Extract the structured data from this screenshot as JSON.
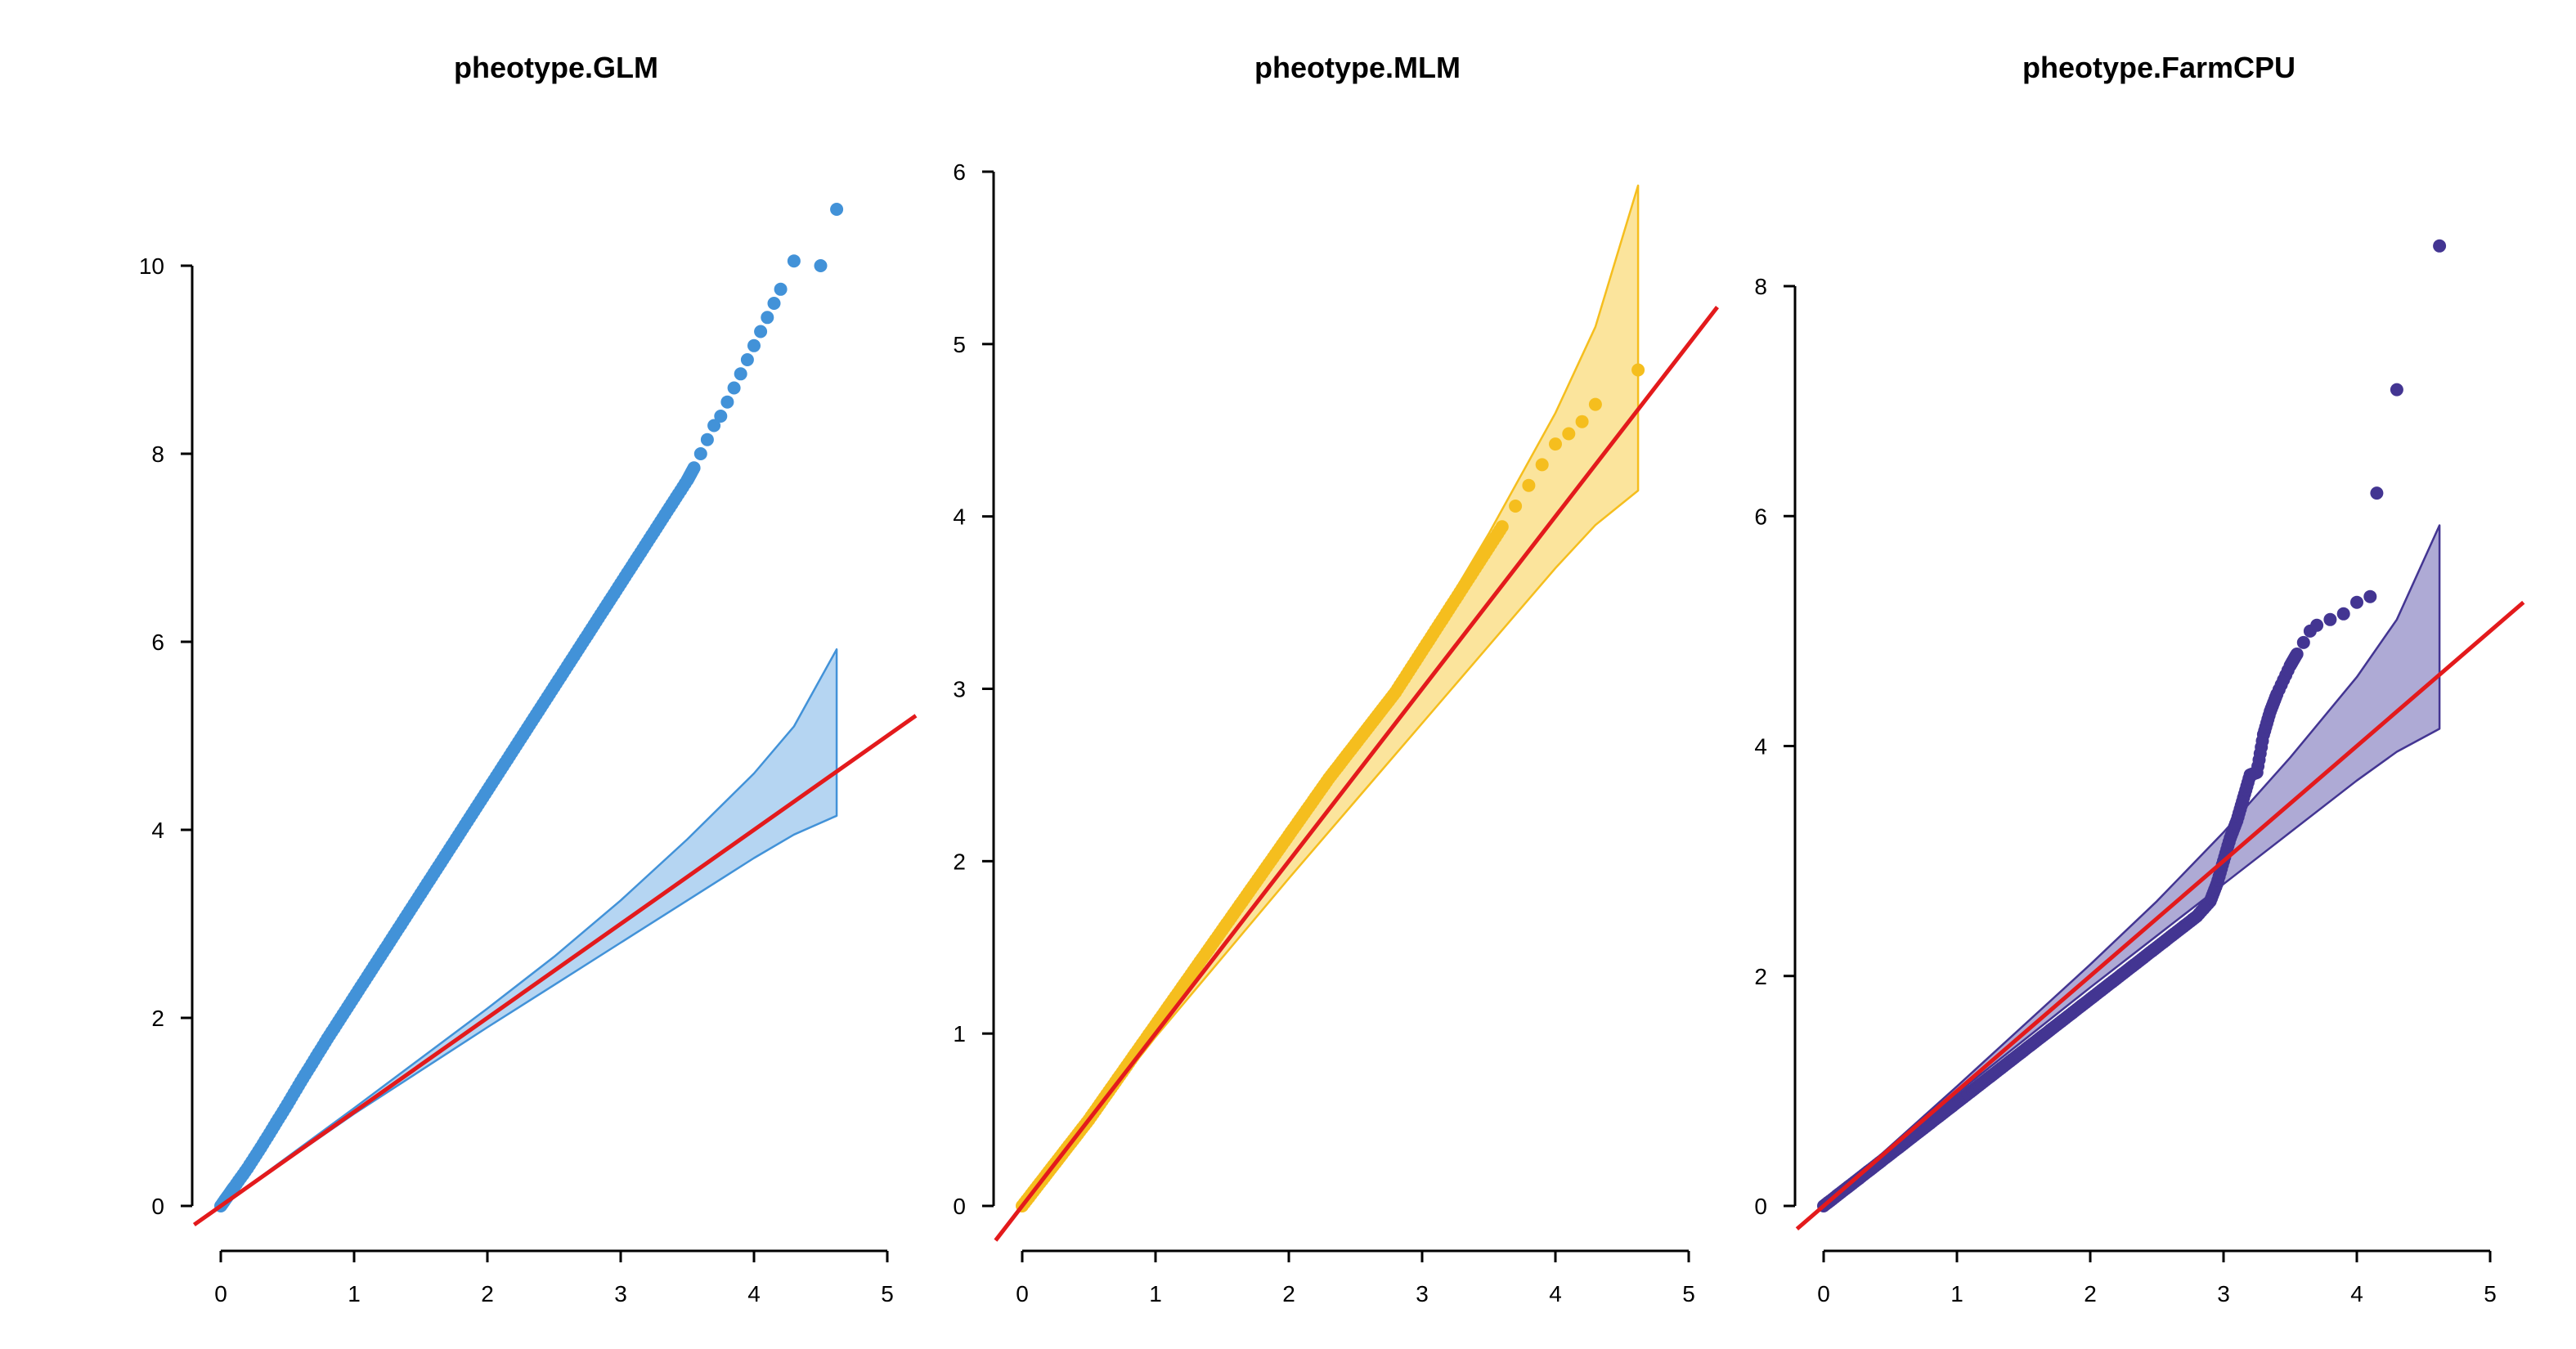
{
  "chart_data": [
    {
      "type": "scatter",
      "title": "pheotype.GLM",
      "xlabel": "",
      "ylabel": "",
      "color": "#4292d8",
      "band_fill": "#b5d5f2",
      "xlim": [
        0,
        5
      ],
      "ylim": [
        0,
        10
      ],
      "x_ticks": [
        "0",
        "1",
        "2",
        "3",
        "4",
        "5"
      ],
      "y_ticks": [
        "0",
        "2",
        "4",
        "6",
        "8",
        "10"
      ],
      "reference_line": "y = x",
      "confidence_band": {
        "x": [
          0,
          1.0,
          2.0,
          2.5,
          3.0,
          3.5,
          4.0,
          4.3,
          4.62
        ],
        "upper": [
          0,
          1.04,
          2.1,
          2.65,
          3.25,
          3.9,
          4.6,
          5.1,
          5.92
        ],
        "lower": [
          0,
          0.98,
          1.9,
          2.35,
          2.8,
          3.25,
          3.7,
          3.95,
          4.15
        ]
      },
      "series": [
        {
          "points": [
            [
              0,
              0
            ],
            [
              0.05,
              0.1
            ],
            [
              0.1,
              0.2
            ],
            [
              0.2,
              0.4
            ],
            [
              0.3,
              0.62
            ],
            [
              0.4,
              0.85
            ],
            [
              0.5,
              1.08
            ],
            [
              0.6,
              1.32
            ],
            [
              0.7,
              1.55
            ],
            [
              0.8,
              1.78
            ],
            [
              0.9,
              2.0
            ],
            [
              1.0,
              2.22
            ],
            [
              1.1,
              2.44
            ],
            [
              1.2,
              2.66
            ],
            [
              1.3,
              2.88
            ],
            [
              1.4,
              3.1
            ],
            [
              1.5,
              3.32
            ],
            [
              1.6,
              3.54
            ],
            [
              1.7,
              3.76
            ],
            [
              1.8,
              3.98
            ],
            [
              1.9,
              4.2
            ],
            [
              2.0,
              4.42
            ],
            [
              2.1,
              4.64
            ],
            [
              2.2,
              4.86
            ],
            [
              2.3,
              5.08
            ],
            [
              2.4,
              5.3
            ],
            [
              2.5,
              5.52
            ],
            [
              2.6,
              5.74
            ],
            [
              2.7,
              5.96
            ],
            [
              2.8,
              6.18
            ],
            [
              2.9,
              6.4
            ],
            [
              3.0,
              6.62
            ],
            [
              3.1,
              6.84
            ],
            [
              3.2,
              7.06
            ],
            [
              3.3,
              7.28
            ],
            [
              3.4,
              7.5
            ],
            [
              3.5,
              7.72
            ],
            [
              3.55,
              7.85
            ],
            [
              3.6,
              8.0
            ],
            [
              3.65,
              8.15
            ],
            [
              3.7,
              8.3
            ],
            [
              3.75,
              8.4
            ],
            [
              3.8,
              8.55
            ],
            [
              3.85,
              8.7
            ],
            [
              3.9,
              8.85
            ],
            [
              3.95,
              9.0
            ],
            [
              4.0,
              9.15
            ],
            [
              4.05,
              9.3
            ],
            [
              4.1,
              9.45
            ],
            [
              4.15,
              9.6
            ],
            [
              4.2,
              9.75
            ],
            [
              4.3,
              10.05
            ],
            [
              4.5,
              10.0
            ],
            [
              4.62,
              10.6
            ]
          ]
        }
      ]
    },
    {
      "type": "scatter",
      "title": "pheotype.MLM",
      "xlabel": "",
      "ylabel": "",
      "color": "#f5be1e",
      "band_fill": "#fbe49c",
      "xlim": [
        0,
        5
      ],
      "ylim": [
        0,
        6
      ],
      "x_ticks": [
        "0",
        "1",
        "2",
        "3",
        "4",
        "5"
      ],
      "y_ticks": [
        "0",
        "1",
        "2",
        "3",
        "4",
        "5",
        "6"
      ],
      "reference_line": "y = x",
      "confidence_band": {
        "x": [
          0,
          1.0,
          2.0,
          2.5,
          3.0,
          3.5,
          4.0,
          4.3,
          4.62
        ],
        "upper": [
          0,
          1.04,
          2.1,
          2.65,
          3.25,
          3.9,
          4.6,
          5.1,
          5.92
        ],
        "lower": [
          0,
          0.98,
          1.9,
          2.35,
          2.8,
          3.25,
          3.7,
          3.95,
          4.15
        ]
      },
      "series": [
        {
          "points": [
            [
              0,
              0
            ],
            [
              0.1,
              0.1
            ],
            [
              0.2,
              0.2
            ],
            [
              0.3,
              0.3
            ],
            [
              0.4,
              0.4
            ],
            [
              0.5,
              0.5
            ],
            [
              0.6,
              0.61
            ],
            [
              0.7,
              0.72
            ],
            [
              0.8,
              0.83
            ],
            [
              0.9,
              0.94
            ],
            [
              1.0,
              1.05
            ],
            [
              1.1,
              1.16
            ],
            [
              1.2,
              1.27
            ],
            [
              1.3,
              1.38
            ],
            [
              1.4,
              1.49
            ],
            [
              1.5,
              1.6
            ],
            [
              1.6,
              1.71
            ],
            [
              1.7,
              1.82
            ],
            [
              1.8,
              1.93
            ],
            [
              1.9,
              2.04
            ],
            [
              2.0,
              2.15
            ],
            [
              2.1,
              2.26
            ],
            [
              2.2,
              2.37
            ],
            [
              2.3,
              2.48
            ],
            [
              2.4,
              2.58
            ],
            [
              2.5,
              2.68
            ],
            [
              2.6,
              2.78
            ],
            [
              2.7,
              2.88
            ],
            [
              2.8,
              2.98
            ],
            [
              2.9,
              3.1
            ],
            [
              3.0,
              3.22
            ],
            [
              3.1,
              3.34
            ],
            [
              3.2,
              3.46
            ],
            [
              3.3,
              3.58
            ],
            [
              3.4,
              3.7
            ],
            [
              3.5,
              3.82
            ],
            [
              3.6,
              3.94
            ],
            [
              3.7,
              4.06
            ],
            [
              3.8,
              4.18
            ],
            [
              3.9,
              4.3
            ],
            [
              4.0,
              4.42
            ],
            [
              4.1,
              4.48
            ],
            [
              4.2,
              4.55
            ],
            [
              4.3,
              4.65
            ],
            [
              4.62,
              4.85
            ]
          ]
        }
      ]
    },
    {
      "type": "scatter",
      "title": "pheotype.FarmCPU",
      "xlabel": "",
      "ylabel": "",
      "color": "#433592",
      "band_fill": "#aeaad5",
      "xlim": [
        0,
        5
      ],
      "ylim": [
        0,
        8
      ],
      "x_ticks": [
        "0",
        "1",
        "2",
        "3",
        "4",
        "5"
      ],
      "y_ticks": [
        "0",
        "2",
        "4",
        "6",
        "8"
      ],
      "reference_line": "y = x",
      "confidence_band": {
        "x": [
          0,
          1.0,
          2.0,
          2.5,
          3.0,
          3.5,
          4.0,
          4.3,
          4.62
        ],
        "upper": [
          0,
          1.04,
          2.1,
          2.65,
          3.25,
          3.9,
          4.6,
          5.1,
          5.92
        ],
        "lower": [
          0,
          0.98,
          1.9,
          2.35,
          2.8,
          3.25,
          3.7,
          3.95,
          4.15
        ]
      },
      "series": [
        {
          "points": [
            [
              0,
              0
            ],
            [
              0.1,
              0.09
            ],
            [
              0.2,
              0.18
            ],
            [
              0.3,
              0.27
            ],
            [
              0.4,
              0.36
            ],
            [
              0.5,
              0.45
            ],
            [
              0.6,
              0.54
            ],
            [
              0.7,
              0.63
            ],
            [
              0.8,
              0.72
            ],
            [
              0.9,
              0.81
            ],
            [
              1.0,
              0.9
            ],
            [
              1.1,
              0.99
            ],
            [
              1.2,
              1.08
            ],
            [
              1.3,
              1.17
            ],
            [
              1.4,
              1.26
            ],
            [
              1.5,
              1.35
            ],
            [
              1.6,
              1.44
            ],
            [
              1.7,
              1.53
            ],
            [
              1.8,
              1.62
            ],
            [
              1.9,
              1.71
            ],
            [
              2.0,
              1.8
            ],
            [
              2.1,
              1.89
            ],
            [
              2.2,
              1.98
            ],
            [
              2.3,
              2.07
            ],
            [
              2.4,
              2.16
            ],
            [
              2.5,
              2.25
            ],
            [
              2.6,
              2.34
            ],
            [
              2.7,
              2.43
            ],
            [
              2.8,
              2.52
            ],
            [
              2.9,
              2.65
            ],
            [
              2.95,
              2.8
            ],
            [
              3.0,
              3.0
            ],
            [
              3.05,
              3.2
            ],
            [
              3.1,
              3.35
            ],
            [
              3.15,
              3.55
            ],
            [
              3.2,
              3.75
            ],
            [
              3.25,
              3.77
            ],
            [
              3.3,
              4.1
            ],
            [
              3.35,
              4.3
            ],
            [
              3.4,
              4.45
            ],
            [
              3.5,
              4.7
            ],
            [
              3.55,
              4.8
            ],
            [
              3.6,
              4.9
            ],
            [
              3.65,
              5.0
            ],
            [
              3.7,
              5.05
            ],
            [
              3.8,
              5.1
            ],
            [
              3.9,
              5.15
            ],
            [
              4.0,
              5.25
            ],
            [
              4.1,
              5.3
            ],
            [
              4.15,
              6.2
            ],
            [
              4.3,
              7.1
            ],
            [
              4.62,
              8.35
            ]
          ]
        }
      ]
    }
  ]
}
